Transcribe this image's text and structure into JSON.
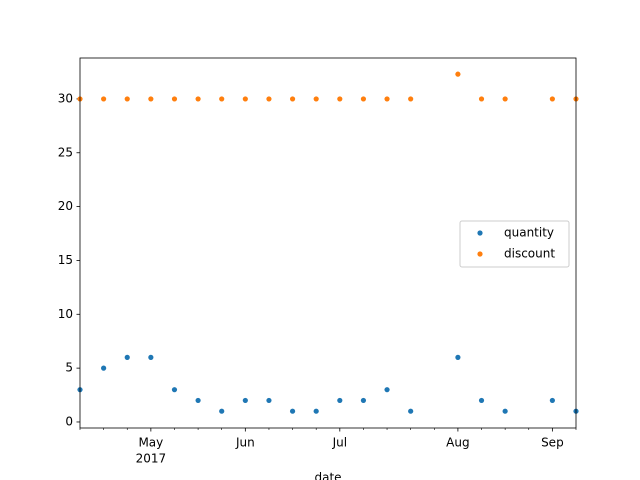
{
  "chart_data": {
    "type": "scatter",
    "xlabel": "date",
    "x": [
      0,
      1,
      2,
      3,
      4,
      5,
      6,
      7,
      8,
      9,
      10,
      11,
      12,
      13,
      14,
      16,
      17,
      18,
      20,
      21
    ],
    "series": [
      {
        "name": "quantity",
        "color": "#1f77b4",
        "values": [
          3,
          5,
          6,
          6,
          3,
          2,
          1,
          2,
          2,
          1,
          1,
          2,
          2,
          3,
          1,
          6,
          2,
          1,
          2,
          1
        ]
      },
      {
        "name": "discount",
        "color": "#ff7f0e",
        "values": [
          30,
          30,
          30,
          30,
          30,
          30,
          30,
          30,
          30,
          30,
          30,
          30,
          30,
          30,
          30,
          32.3,
          30,
          30,
          30,
          30
        ]
      }
    ],
    "xlim": [
      0,
      21
    ],
    "xticks": [
      {
        "value": 3,
        "label": "May"
      },
      {
        "value": 7,
        "label": "Jun"
      },
      {
        "value": 11,
        "label": "Jul"
      },
      {
        "value": 16,
        "label": "Aug"
      },
      {
        "value": 20,
        "label": "Sep"
      }
    ],
    "xtick_year": {
      "value": 3,
      "label": "2017"
    },
    "xminorticks": [
      0,
      1,
      2,
      4,
      5,
      6,
      8,
      9,
      10,
      12,
      13,
      14,
      15,
      17,
      18,
      19,
      21
    ],
    "ylim": [
      -0.56,
      33.8
    ],
    "yticks": [
      0,
      5,
      10,
      15,
      20,
      25,
      30
    ],
    "grid": false,
    "legend": "right"
  }
}
